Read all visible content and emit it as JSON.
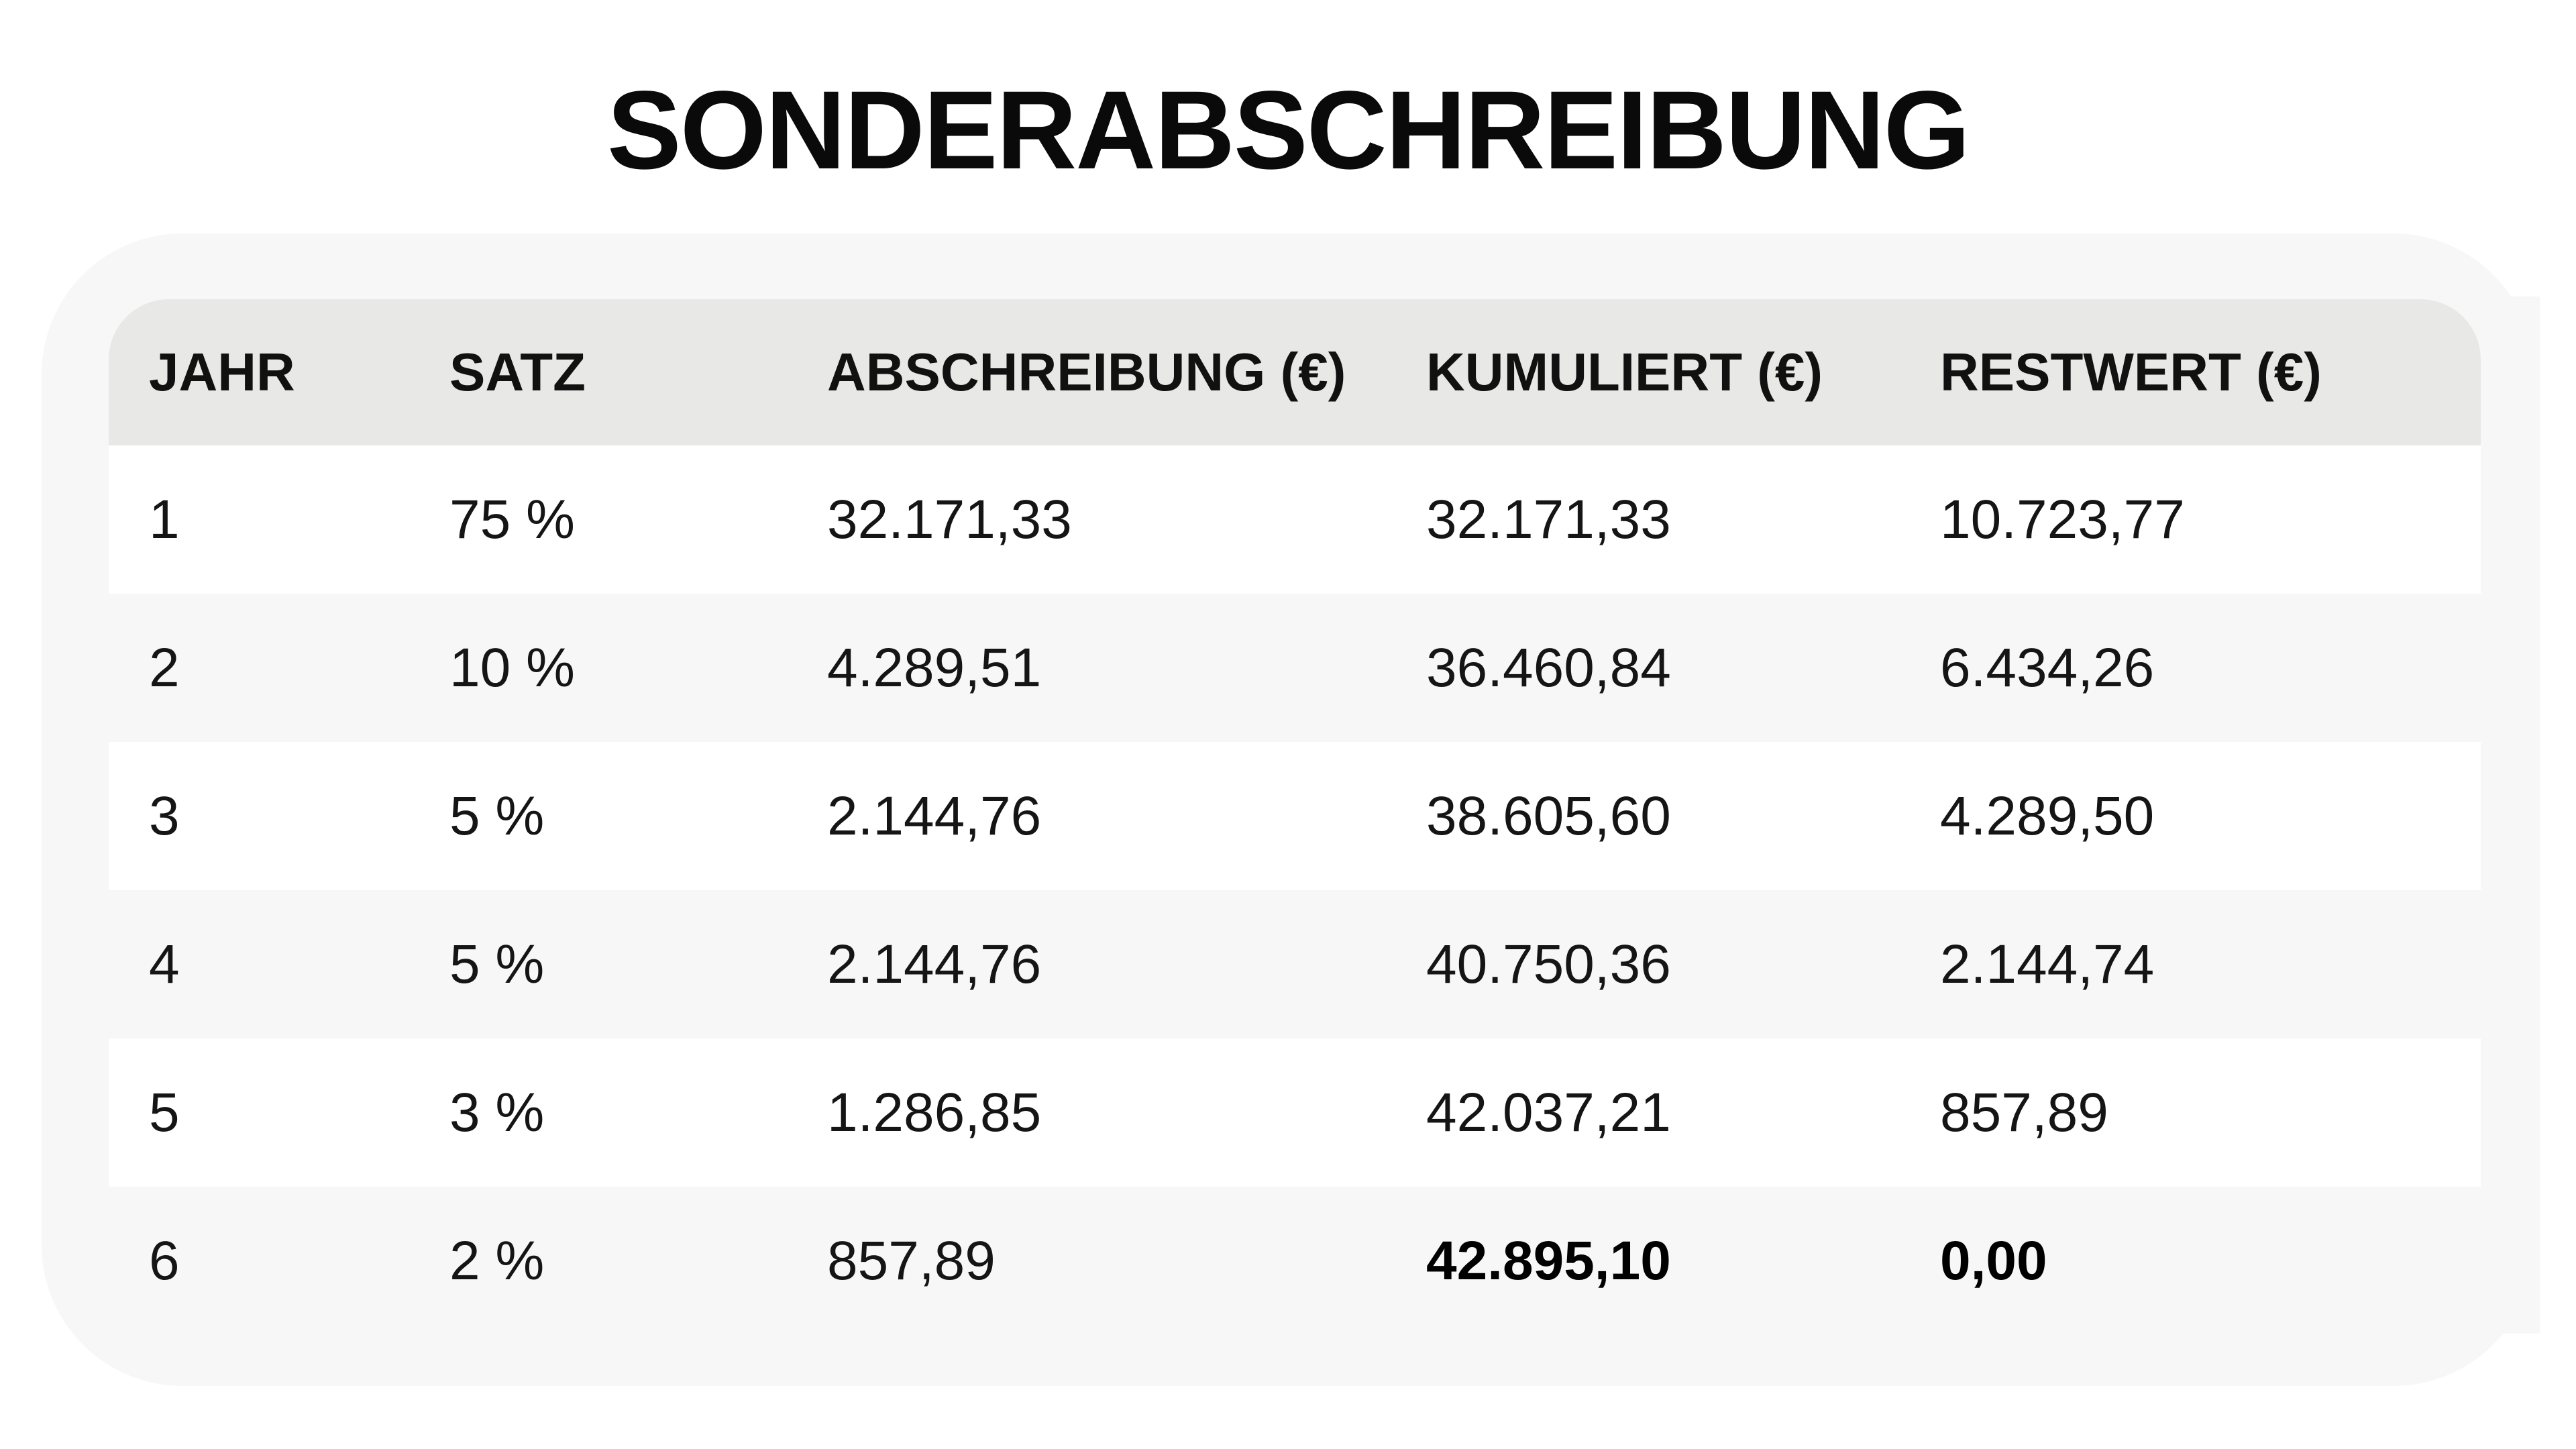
{
  "title": "SONDERABSCHREIBUNG",
  "table": {
    "headers": [
      "JAHR",
      "SATZ",
      "ABSCHREIBUNG (€)",
      "KUMULIERT (€)",
      "RESTWERT (€)"
    ],
    "rows": [
      [
        "1",
        "75 %",
        "32.171,33",
        "32.171,33",
        "10.723,77"
      ],
      [
        "2",
        "10 %",
        "4.289,51",
        "36.460,84",
        "6.434,26"
      ],
      [
        "3",
        "5 %",
        "2.144,76",
        "38.605,60",
        "4.289,50"
      ],
      [
        "4",
        "5 %",
        "2.144,76",
        "40.750,36",
        "2.144,74"
      ],
      [
        "5",
        "3 %",
        "1.286,85",
        "42.037,21",
        "857,89"
      ],
      [
        "6",
        "2 %",
        "857,89",
        "42.895,10",
        "0,00"
      ]
    ]
  }
}
